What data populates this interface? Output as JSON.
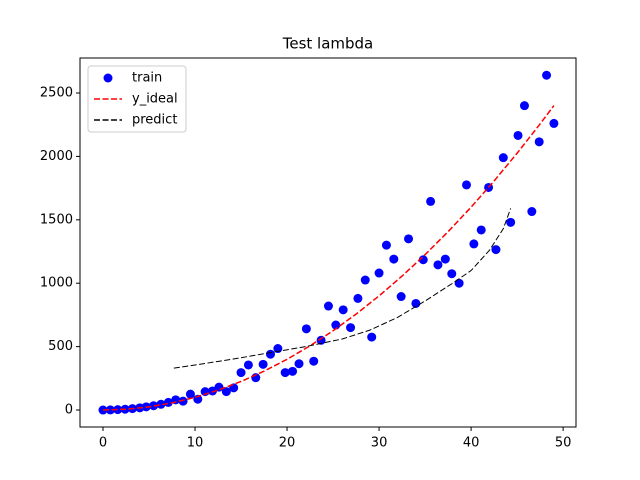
{
  "chart_data": {
    "type": "scatter",
    "title": "Test lambda",
    "xlim": [
      -2.5,
      51.4
    ],
    "xticks": [
      0,
      10,
      20,
      30,
      40,
      50
    ],
    "ylim": [
      -134,
      2776
    ],
    "yticks": [
      0,
      500,
      1000,
      1500,
      2000,
      2500
    ],
    "legend": "upper left",
    "series": [
      {
        "name": "train",
        "kind": "scatter",
        "color": "#0000ff",
        "x": [
          0,
          0.8,
          1.6,
          2.4,
          3.2,
          4.0,
          4.7,
          5.5,
          6.3,
          7.1,
          7.9,
          8.7,
          9.5,
          10.3,
          11.1,
          11.9,
          12.6,
          13.4,
          14.2,
          15.0,
          15.8,
          16.6,
          17.4,
          18.2,
          19.0,
          19.8,
          20.6,
          21.3,
          22.1,
          22.9,
          23.7,
          24.5,
          25.3,
          26.1,
          26.9,
          27.7,
          28.5,
          29.2,
          30.0,
          30.8,
          31.6,
          32.4,
          33.2,
          34.0,
          34.8,
          35.6,
          36.4,
          37.2,
          37.9,
          38.7,
          39.5,
          40.3,
          41.1,
          41.9,
          42.7,
          43.5,
          44.3,
          45.1,
          45.8,
          46.6,
          47.4,
          48.2,
          49.0
        ],
        "values": [
          0,
          1,
          3,
          6,
          11,
          17,
          25,
          34,
          45,
          60,
          80,
          70,
          125,
          85,
          145,
          150,
          180,
          145,
          175,
          295,
          355,
          255,
          360,
          440,
          485,
          295,
          305,
          365,
          640,
          385,
          550,
          820,
          670,
          790,
          650,
          880,
          1025,
          575,
          1080,
          1300,
          1190,
          895,
          1350,
          840,
          1185,
          1645,
          1145,
          1190,
          1075,
          1000,
          1775,
          1310,
          1420,
          1755,
          1265,
          1990,
          1480,
          2165,
          2400,
          1565,
          2115,
          2640,
          2260
        ]
      },
      {
        "name": "y_ideal",
        "kind": "line",
        "style": "dashed",
        "color": "#ff0000",
        "x": [
          0,
          2.5,
          5,
          7.5,
          10,
          12.5,
          15,
          17.5,
          20,
          22.5,
          25,
          27.5,
          30,
          32.5,
          35,
          37.5,
          40,
          42.5,
          45,
          47.5,
          49
        ],
        "values": [
          0,
          6.25,
          25,
          56.25,
          100,
          156.25,
          225,
          306.25,
          400,
          506.25,
          625,
          756.25,
          900,
          1056.25,
          1225,
          1406.25,
          1600,
          1806.25,
          2025,
          2256.25,
          2401
        ]
      },
      {
        "name": "predict",
        "kind": "line",
        "style": "dashed",
        "color": "#000000",
        "x": [
          7.7,
          10,
          14,
          18,
          22,
          26,
          29,
          32,
          35,
          38,
          40,
          42,
          43.5,
          44.3
        ],
        "values": [
          330,
          355,
          400,
          450,
          500,
          560,
          630,
          730,
          860,
          1000,
          1100,
          1260,
          1430,
          1590
        ]
      }
    ]
  }
}
